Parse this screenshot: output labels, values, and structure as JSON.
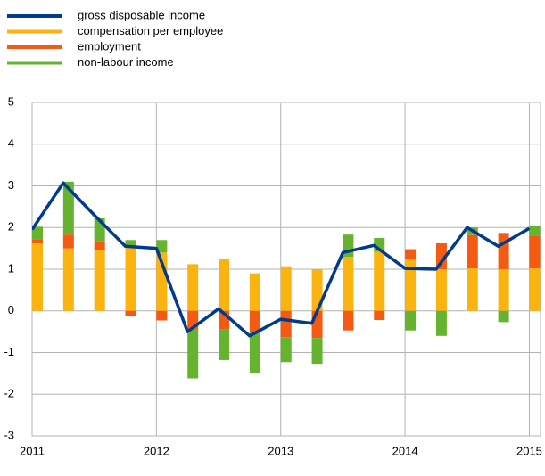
{
  "chart_data": {
    "type": "bar-line",
    "x": [
      2011,
      2011.25,
      2011.5,
      2011.75,
      2012,
      2012.25,
      2012.5,
      2012.75,
      2013,
      2013.25,
      2013.5,
      2013.75,
      2014,
      2014.25,
      2014.5,
      2014.75,
      2015
    ],
    "series": [
      {
        "name": "gross disposable income",
        "color": "#003b8e",
        "kind": "line",
        "values": [
          1.95,
          3.07,
          2.3,
          1.55,
          1.5,
          -0.5,
          0.05,
          -0.6,
          -0.2,
          -0.3,
          1.4,
          1.57,
          1.02,
          1.0,
          2.0,
          1.55,
          1.98
        ]
      },
      {
        "name": "compensation per employee",
        "color": "#fbb30f",
        "kind": "bar",
        "values": [
          1.62,
          1.5,
          1.47,
          1.55,
          1.4,
          1.12,
          1.25,
          0.9,
          1.07,
          1.0,
          1.3,
          1.42,
          1.25,
          1.0,
          1.02,
          1.0,
          1.02
        ]
      },
      {
        "name": "employment",
        "color": "#f55a12",
        "kind": "bar",
        "values": [
          0.1,
          0.33,
          0.2,
          -0.13,
          -0.23,
          -0.45,
          -0.45,
          -0.5,
          -0.63,
          -0.65,
          -0.47,
          -0.22,
          0.23,
          0.62,
          0.8,
          0.87,
          0.78
        ]
      },
      {
        "name": "non-labour income",
        "color": "#65b32e",
        "kind": "bar",
        "values": [
          0.3,
          1.27,
          0.55,
          0.15,
          0.3,
          -1.17,
          -0.73,
          -1.0,
          -0.6,
          -0.62,
          0.53,
          0.33,
          -0.47,
          -0.6,
          0.18,
          -0.27,
          0.25
        ]
      }
    ],
    "xlim": [
      2011,
      2015.09
    ],
    "xticks": [
      2011,
      2012,
      2013,
      2014,
      2015
    ],
    "ylim": [
      -3,
      5
    ],
    "yticks": [
      -3,
      -2,
      -1,
      0,
      1,
      2,
      3,
      4,
      5
    ],
    "grid": true
  }
}
